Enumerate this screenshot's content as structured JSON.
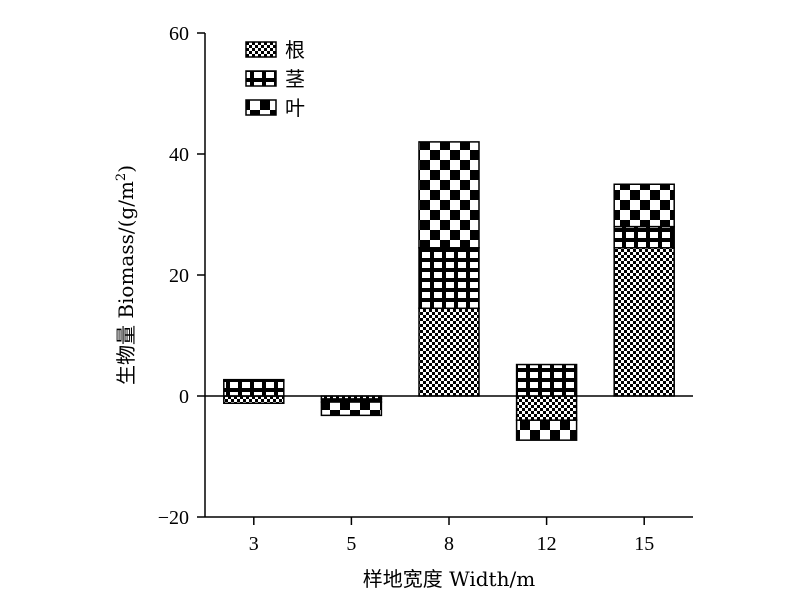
{
  "chart_data": {
    "type": "bar",
    "stacked": true,
    "title": "",
    "xlabel": "样地宽度 Width/m",
    "ylabel_main": "生物量 Biomass/(g/m",
    "ylabel_sup": "2",
    "ylabel_close": ")",
    "ylim": [
      -20,
      60
    ],
    "yticks": [
      -20,
      0,
      20,
      40,
      60
    ],
    "categories": [
      "3",
      "5",
      "8",
      "12",
      "15"
    ],
    "series": [
      {
        "name": "根",
        "pattern": "fine-checker",
        "values": [
          -1.2,
          -0.5,
          14.5,
          -4.0,
          24.5
        ]
      },
      {
        "name": "茎",
        "pattern": "grid",
        "values": [
          2.5,
          -0.5,
          10.0,
          5.2,
          3.5
        ]
      },
      {
        "name": "叶",
        "pattern": "checker",
        "values": [
          0.2,
          -2.2,
          17.5,
          -3.3,
          7.0
        ]
      }
    ],
    "grid": false,
    "legend_position": "top-left",
    "colors": {
      "fill": "#000000",
      "background": "#ffffff"
    }
  }
}
